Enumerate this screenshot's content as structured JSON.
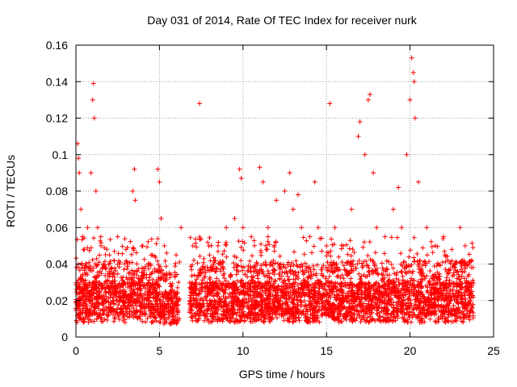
{
  "chart_data": {
    "type": "scatter",
    "title": "Day 031 of 2014, Rate Of TEC Index for receiver nurk",
    "xlabel": "GPS time / hours",
    "ylabel": "ROTI / TECUs",
    "xlim": [
      0,
      25
    ],
    "ylim": [
      0,
      0.16
    ],
    "xticks": [
      0,
      5,
      10,
      15,
      20,
      25
    ],
    "xtick_labels": [
      "0",
      "5",
      "10",
      "15",
      "20",
      "25"
    ],
    "yticks": [
      0,
      0.02,
      0.04,
      0.06,
      0.08,
      0.1,
      0.12,
      0.14,
      0.16
    ],
    "ytick_labels": [
      "0",
      "0.02",
      "0.04",
      "0.06",
      "0.08",
      "0.1",
      "0.12",
      "0.14",
      "0.16"
    ],
    "grid": true,
    "marker": "+",
    "color": "#ff0000",
    "series": [
      {
        "name": "ROTI",
        "x": [
          0.1,
          0.15,
          0.2,
          0.3,
          0.4,
          0.5,
          0.7,
          0.9,
          1.0,
          1.05,
          1.1,
          1.2,
          1.3,
          1.5,
          2.0,
          2.5,
          3.0,
          3.4,
          3.5,
          3.55,
          4.0,
          4.5,
          4.9,
          5.0,
          5.1,
          5.3,
          6.0,
          6.3,
          7.0,
          7.4,
          8.0,
          8.5,
          9.0,
          9.5,
          9.8,
          9.9,
          10.0,
          10.5,
          11.0,
          11.2,
          11.5,
          12.0,
          12.5,
          12.8,
          13.0,
          13.3,
          13.5,
          14.0,
          14.3,
          14.5,
          15.0,
          15.2,
          15.5,
          16.0,
          16.5,
          16.9,
          17.0,
          17.3,
          17.5,
          17.6,
          17.8,
          18.0,
          18.5,
          19.0,
          19.3,
          19.5,
          19.8,
          20.0,
          20.1,
          20.2,
          20.25,
          20.3,
          20.5,
          21.0,
          21.5,
          22.0,
          22.5,
          23.0,
          23.3,
          23.7
        ],
        "y": [
          0.106,
          0.098,
          0.09,
          0.07,
          0.055,
          0.048,
          0.06,
          0.09,
          0.13,
          0.139,
          0.12,
          0.08,
          0.06,
          0.05,
          0.045,
          0.055,
          0.048,
          0.08,
          0.092,
          0.075,
          0.05,
          0.045,
          0.092,
          0.085,
          0.065,
          0.05,
          0.045,
          0.06,
          0.05,
          0.128,
          0.045,
          0.05,
          0.06,
          0.065,
          0.092,
          0.087,
          0.06,
          0.055,
          0.093,
          0.085,
          0.06,
          0.075,
          0.08,
          0.09,
          0.07,
          0.078,
          0.06,
          0.055,
          0.085,
          0.06,
          0.05,
          0.128,
          0.06,
          0.05,
          0.07,
          0.11,
          0.118,
          0.1,
          0.13,
          0.133,
          0.09,
          0.06,
          0.055,
          0.07,
          0.082,
          0.06,
          0.1,
          0.13,
          0.153,
          0.145,
          0.14,
          0.12,
          0.085,
          0.06,
          0.05,
          0.055,
          0.048,
          0.06,
          0.05,
          0.042
        ]
      }
    ],
    "dense_band": {
      "x_range": [
        0,
        23.8
      ],
      "typical_y_range": [
        0.005,
        0.05
      ],
      "gap_x_range": [
        6.2,
        6.8
      ]
    }
  }
}
